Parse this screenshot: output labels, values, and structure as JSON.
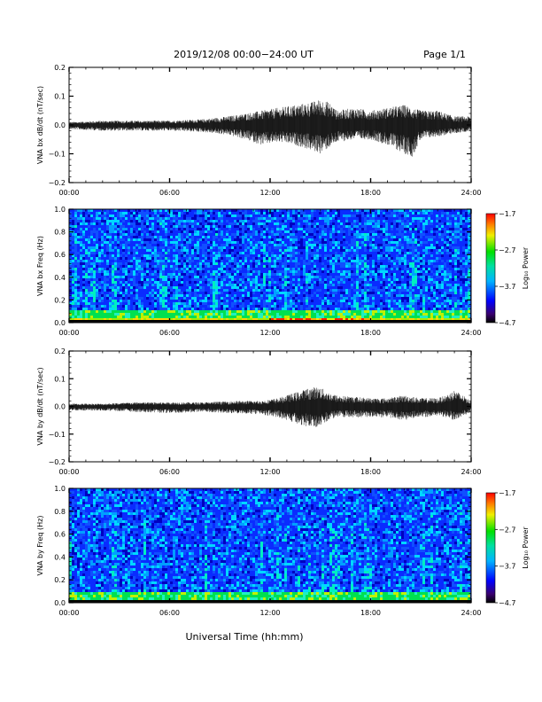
{
  "header": {
    "title": "2019/12/08  00:00−24:00 UT",
    "page": "Page 1/1"
  },
  "xlabel": "Universal Time (hh:mm)",
  "chart_data": [
    {
      "type": "line",
      "ylabel": "VNA bx dB/dt (nT/sec)",
      "x_range_hours": [
        0,
        24
      ],
      "x_tick_labels": [
        "00:00",
        "06:00",
        "12:00",
        "18:00",
        "24:00"
      ],
      "ylim": [
        -0.2,
        0.2
      ],
      "y_tick_labels": [
        "0.2",
        "0.1",
        "0.0",
        "−0.1",
        "−0.2"
      ],
      "series": [
        {
          "x_hours": [
            0,
            2,
            4,
            6,
            8,
            9.5,
            10.5,
            11.5,
            12.5,
            13.5,
            14.5,
            15,
            15.5,
            16,
            17,
            18,
            19,
            20,
            20.5,
            21,
            22,
            23,
            24
          ],
          "max": [
            0.01,
            0.015,
            0.015,
            0.015,
            0.02,
            0.03,
            0.04,
            0.05,
            0.06,
            0.07,
            0.08,
            0.09,
            0.08,
            0.05,
            0.06,
            0.05,
            0.06,
            0.07,
            0.06,
            0.05,
            0.05,
            0.03,
            0.03
          ],
          "min": [
            -0.015,
            -0.02,
            -0.02,
            -0.02,
            -0.025,
            -0.035,
            -0.05,
            -0.07,
            -0.06,
            -0.07,
            -0.09,
            -0.1,
            -0.08,
            -0.06,
            -0.05,
            -0.05,
            -0.07,
            -0.1,
            -0.11,
            -0.05,
            -0.04,
            -0.03,
            -0.02
          ]
        }
      ]
    },
    {
      "type": "heatmap",
      "ylabel": "VNA bx Freq (Hz)",
      "x_range_hours": [
        0,
        24
      ],
      "x_tick_labels": [
        "00:00",
        "06:00",
        "12:00",
        "18:00",
        "24:00"
      ],
      "ylim": [
        0,
        1.0
      ],
      "y_tick_labels": [
        "1.0",
        "0.8",
        "0.6",
        "0.4",
        "0.2",
        "0.0"
      ],
      "colorbar": {
        "label": "Log₁₀ Power",
        "range": [
          -4.7,
          -1.7
        ],
        "tick_labels": [
          "−1.7",
          "−2.7",
          "−3.7",
          "−4.7"
        ]
      },
      "low_freq_enhancement_hours": [
        12,
        18
      ]
    },
    {
      "type": "line",
      "ylabel": "VNA by dB/dt (nT/sec)",
      "x_range_hours": [
        0,
        24
      ],
      "x_tick_labels": [
        "00:00",
        "06:00",
        "12:00",
        "18:00",
        "24:00"
      ],
      "ylim": [
        -0.2,
        0.2
      ],
      "y_tick_labels": [
        "0.2",
        "0.1",
        "0.0",
        "−0.1",
        "−0.2"
      ],
      "series": [
        {
          "x_hours": [
            0,
            2,
            4,
            6,
            8,
            10,
            11.5,
            12.5,
            13.5,
            14,
            14.5,
            15,
            15.5,
            16,
            17,
            18,
            19,
            20,
            21,
            22,
            22.5,
            23,
            24
          ],
          "max": [
            0.01,
            0.01,
            0.015,
            0.015,
            0.015,
            0.02,
            0.02,
            0.03,
            0.05,
            0.06,
            0.07,
            0.07,
            0.05,
            0.04,
            0.035,
            0.03,
            0.03,
            0.04,
            0.03,
            0.03,
            0.04,
            0.06,
            0.02
          ],
          "min": [
            -0.015,
            -0.015,
            -0.02,
            -0.025,
            -0.02,
            -0.025,
            -0.03,
            -0.04,
            -0.06,
            -0.07,
            -0.08,
            -0.07,
            -0.05,
            -0.04,
            -0.04,
            -0.04,
            -0.04,
            -0.05,
            -0.04,
            -0.035,
            -0.04,
            -0.05,
            -0.02
          ]
        }
      ]
    },
    {
      "type": "heatmap",
      "ylabel": "VNA by Freq (Hz)",
      "x_range_hours": [
        0,
        24
      ],
      "x_tick_labels": [
        "00:00",
        "06:00",
        "12:00",
        "18:00",
        "24:00"
      ],
      "ylim": [
        0,
        1.0
      ],
      "y_tick_labels": [
        "1.0",
        "0.8",
        "0.6",
        "0.4",
        "0.2",
        "0.0"
      ],
      "colorbar": {
        "label": "Log₁₀ Power",
        "range": [
          -4.7,
          -1.7
        ],
        "tick_labels": [
          "−1.7",
          "−2.7",
          "−3.7",
          "−4.7"
        ]
      },
      "low_freq_enhancement_hours": [
        12,
        18
      ]
    }
  ]
}
